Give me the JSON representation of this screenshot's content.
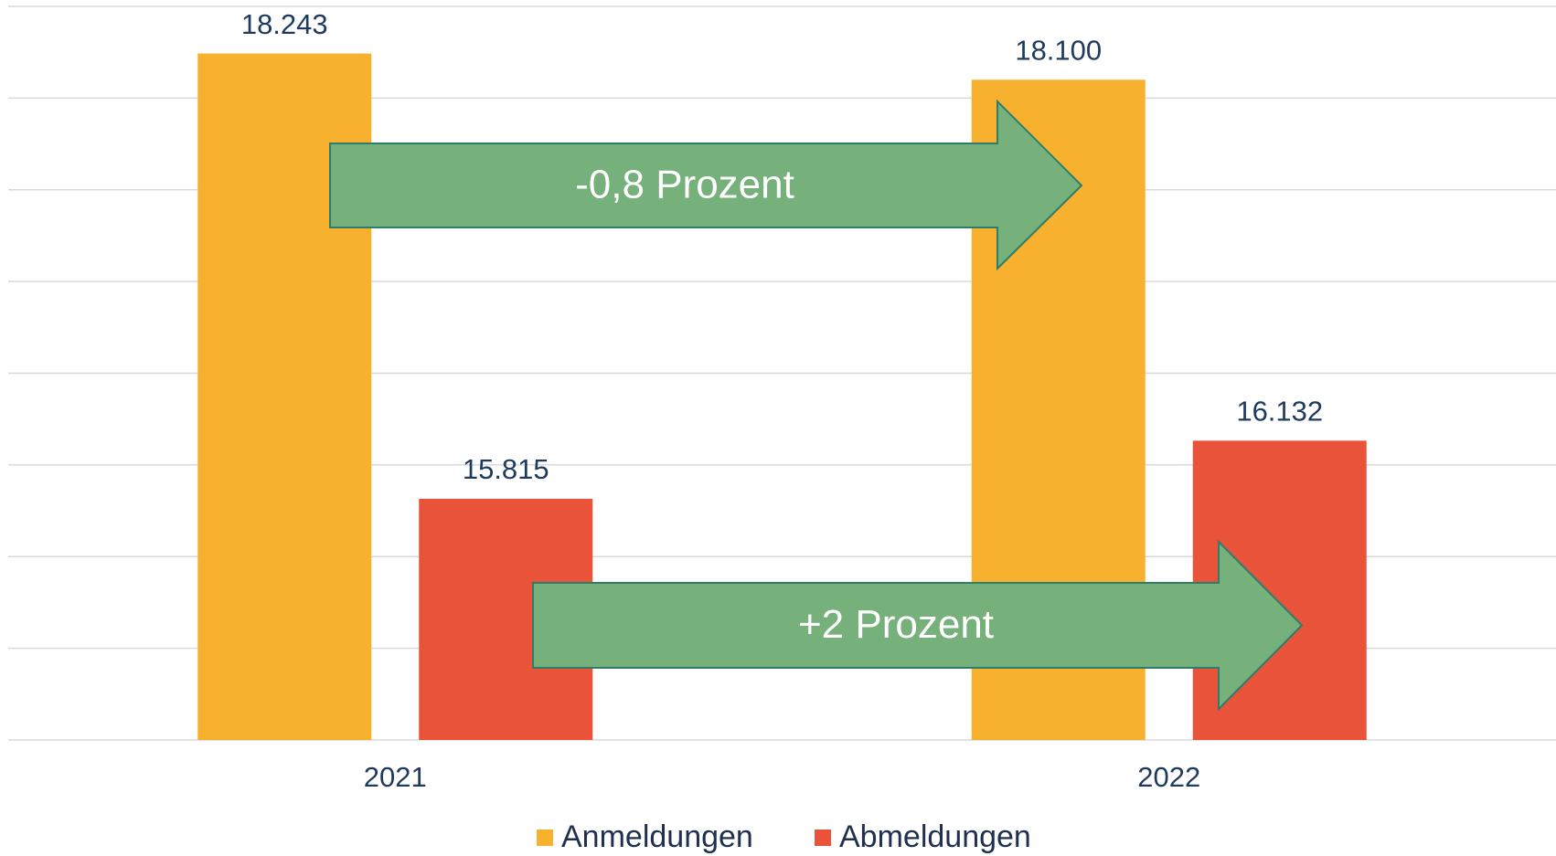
{
  "chart_data": {
    "type": "bar",
    "categories": [
      "2021",
      "2022"
    ],
    "series": [
      {
        "name": "Anmeldungen",
        "color": "#f7b12f",
        "values": [
          18243,
          18100
        ],
        "value_labels": [
          "18.243",
          "18.100"
        ]
      },
      {
        "name": "Abmeldungen",
        "color": "#e8533a",
        "values": [
          15815,
          16132
        ],
        "value_labels": [
          "15.815",
          "16.132"
        ]
      }
    ],
    "ylim": [
      14500,
      18500
    ],
    "yticks": [
      14500,
      15000,
      15500,
      16000,
      16500,
      17000,
      17500,
      18000,
      18500
    ],
    "grid": true,
    "annotations": [
      {
        "text": "-0,8 Prozent"
      },
      {
        "text": "+2 Prozent"
      }
    ],
    "legend": "bottom"
  }
}
